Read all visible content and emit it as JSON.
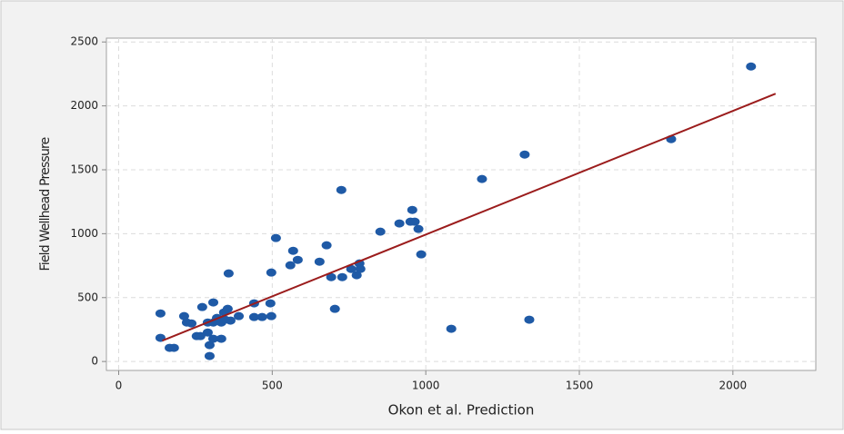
{
  "chart_data": {
    "type": "scatter",
    "x_label": "Okon et al. Prediction",
    "y_label": "Field Wellhead Pressure",
    "xlim": [
      -40,
      2270
    ],
    "ylim": [
      -70,
      2530
    ],
    "xticks": [
      0,
      500,
      1000,
      1500,
      2000
    ],
    "yticks": [
      0,
      500,
      1000,
      1500,
      2000,
      2500
    ],
    "grid": true,
    "series": [
      {
        "mode": "markers",
        "color": "#1f5aa6",
        "x": [
          136,
          136,
          166,
          180,
          213,
          222,
          237,
          254,
          266,
          272,
          290,
          290,
          296,
          296,
          308,
          308,
          308,
          320,
          334,
          334,
          343,
          346,
          358,
          355,
          364,
          391,
          441,
          441,
          467,
          497,
          494,
          497,
          512,
          559,
          568,
          583,
          654,
          677,
          692,
          704,
          725,
          728,
          757,
          775,
          784,
          787,
          852,
          914,
          950,
          956,
          964,
          976,
          985,
          1083,
          1183,
          1322,
          1337,
          1799,
          2059
        ],
        "values": [
          376,
          185,
          107,
          107,
          355,
          305,
          298,
          199,
          199,
          426,
          305,
          227,
          128,
          43,
          178,
          305,
          462,
          341,
          305,
          178,
          384,
          327,
          689,
          412,
          320,
          355,
          348,
          455,
          348,
          696,
          455,
          355,
          966,
          753,
          866,
          795,
          781,
          909,
          660,
          412,
          1342,
          660,
          724,
          675,
          767,
          724,
          1016,
          1080,
          1094,
          1186,
          1094,
          1037,
          838,
          256,
          1428,
          1619,
          327,
          1740,
          2308
        ]
      },
      {
        "mode": "line",
        "color": "#9b1c1c",
        "x": [
          142,
          2139
        ],
        "values": [
          163,
          2095
        ]
      }
    ]
  }
}
